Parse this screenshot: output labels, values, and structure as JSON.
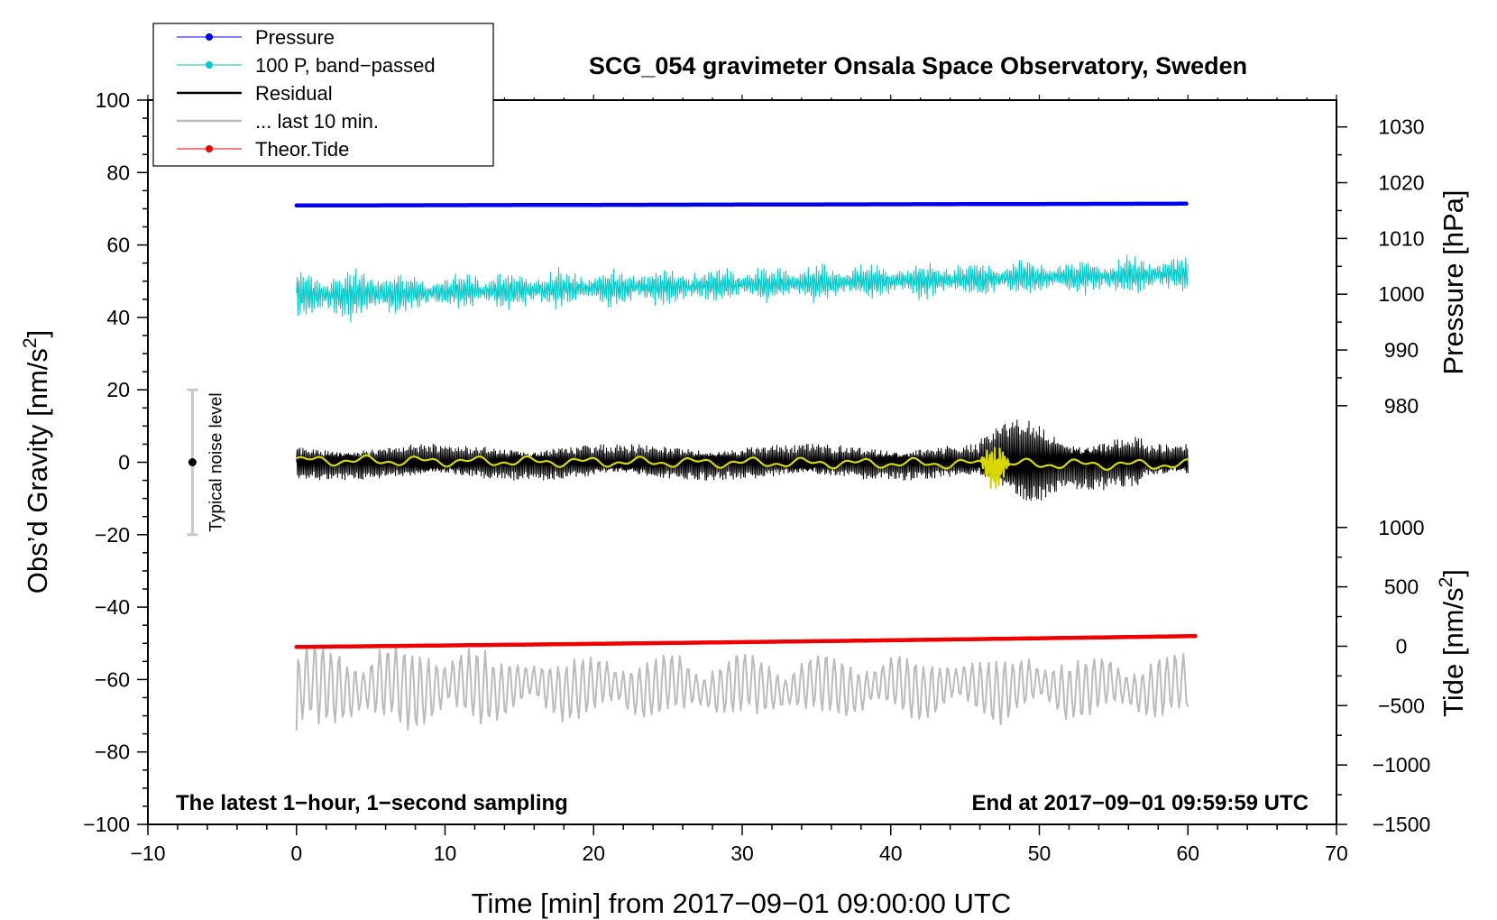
{
  "chart_data": {
    "type": "line",
    "title": "SCG_054 gravimeter Onsala Space Observatory, Sweden",
    "xlabel": "Time [min] from 2017−09−01 09:00:00 UTC",
    "ylabel_left_main": "Obs’d Gravity [nm/s",
    "ylabel_left_sup": "2",
    "ylabel_left_end": "]",
    "ylabel_right_pressure": "Pressure [hPa]",
    "ylabel_right_tide_main": "Tide [nm/s",
    "ylabel_right_tide_sup": "2",
    "ylabel_right_tide_end": "]",
    "xlim": [
      -10,
      70
    ],
    "ylim": [
      -100,
      100
    ],
    "x_ticks": [
      -10,
      0,
      10,
      20,
      30,
      40,
      50,
      60,
      70
    ],
    "x_tick_labels": [
      "−10",
      "0",
      "10",
      "20",
      "30",
      "40",
      "50",
      "60",
      "70"
    ],
    "y_ticks": [
      -100,
      -80,
      -60,
      -40,
      -20,
      0,
      20,
      40,
      60,
      80,
      100
    ],
    "y_tick_labels": [
      "−100",
      "−80",
      "−60",
      "−40",
      "−20",
      "0",
      "20",
      "40",
      "60",
      "80",
      "100"
    ],
    "pressure_axis": {
      "ticks": [
        980,
        990,
        1000,
        1010,
        1020,
        1030
      ],
      "tick_labels": [
        "980",
        "990",
        "1000",
        "1010",
        "1020",
        "1030"
      ],
      "ref_value": 980,
      "ref_gravity": 15.6,
      "gravity_per_unit": 1.54
    },
    "tide_axis": {
      "ticks": [
        -1500,
        -1000,
        -500,
        0,
        500,
        1000
      ],
      "tick_labels": [
        "−1500",
        "−1000",
        "−500",
        "0",
        "500",
        "1000"
      ],
      "ref_value": 0,
      "ref_gravity": -50.8,
      "gravity_per_unit": 0.0328
    },
    "grid": false,
    "legend_position": "top-left",
    "legend": [
      {
        "label": "Pressure",
        "color": "#0000ee",
        "marker": true
      },
      {
        "label": "100 P, band−passed",
        "color": "#00c8c8",
        "marker": true
      },
      {
        "label": "Residual",
        "color": "#000000",
        "marker": false
      },
      {
        "label": "... last 10 min.",
        "color": "#bbbbbb",
        "marker": false
      },
      {
        "label": "Theor.Tide",
        "color": "#ee0000",
        "marker": true
      }
    ],
    "annotation_left": "The latest 1−hour, 1−second sampling",
    "annotation_right": "End at 2017−09−01 09:59:59 UTC",
    "noise_bar": {
      "label": "Typical noise level",
      "x": -7,
      "y": 0,
      "low": -20,
      "high": 20
    },
    "series": [
      {
        "name": "Pressure",
        "color": "#0000ee",
        "x_range": [
          0,
          60
        ],
        "y_start": 70.9,
        "y_end": 71.4
      },
      {
        "name": "100 P, band−passed",
        "color": "#00c8c8",
        "x_range": [
          0,
          60
        ],
        "y_start": 46,
        "y_end": 52,
        "amplitude": 6
      },
      {
        "name": "Residual",
        "color": "#000000",
        "x_range": [
          0,
          60
        ],
        "y_center": 0,
        "amplitude": 5,
        "event_window": [
          46,
          56
        ],
        "event_amplitude": 13
      },
      {
        "name": "... last 10 min.",
        "color": "#bbbbbb",
        "x_range": [
          0,
          60
        ],
        "y_center": -62,
        "amplitude": 9
      },
      {
        "name": "Theor.Tide",
        "color": "#ee0000",
        "x_range": [
          0,
          60.5
        ],
        "y_start": -51,
        "y_end": -48
      }
    ],
    "smoothed_residual": {
      "color": "#d8d800",
      "x_range": [
        0,
        60
      ],
      "y_center": 0.5,
      "amplitude": 1.5,
      "event_window": [
        46,
        48
      ],
      "event_amplitude": 6
    }
  }
}
